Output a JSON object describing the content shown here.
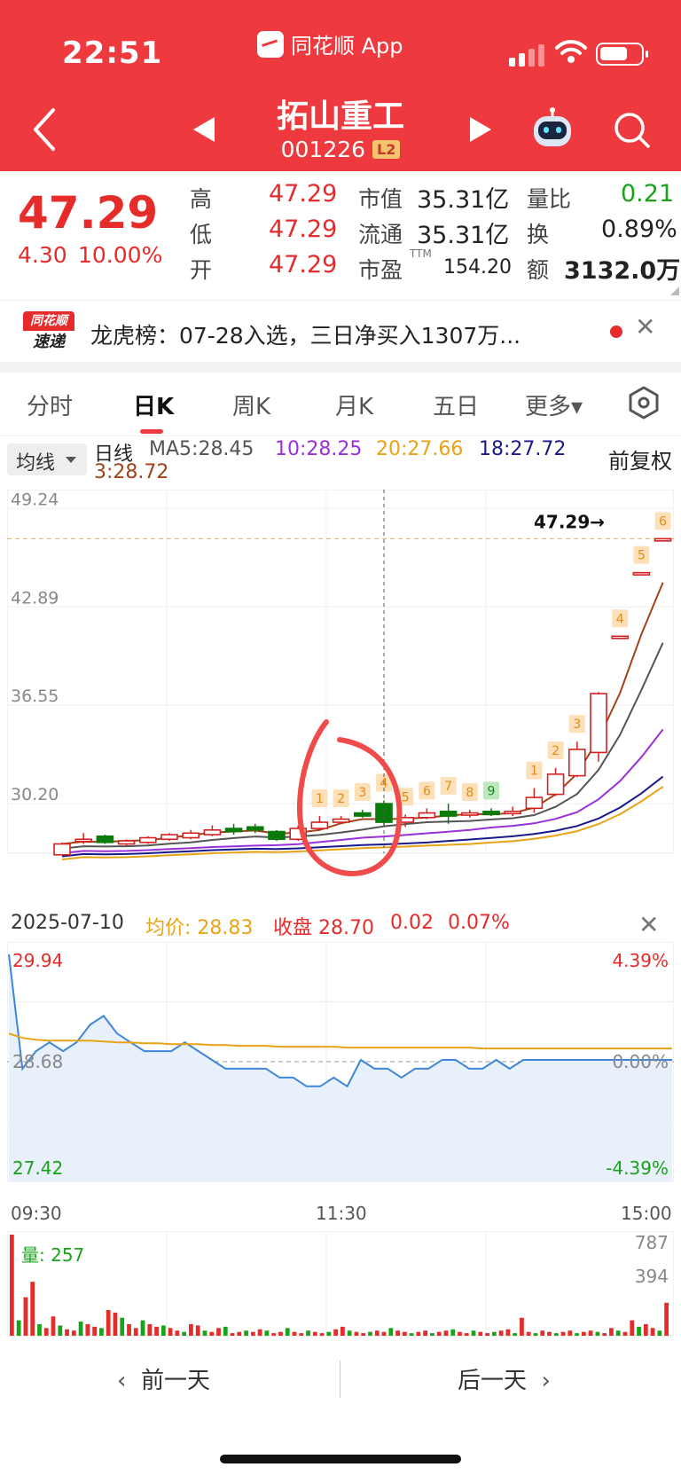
{
  "status_bar": {
    "time": "22:51",
    "app_label": "同花顺 App"
  },
  "header": {
    "stock_name": "拓山重工",
    "stock_code": "001226",
    "level_badge": "L2"
  },
  "quote": {
    "price": "47.29",
    "change": "4.30",
    "change_pct": "10.00%",
    "high_label": "高",
    "high": "47.29",
    "low_label": "低",
    "low": "47.29",
    "open_label": "开",
    "open": "47.29",
    "mcap_label": "市值",
    "mcap": "35.31亿",
    "float_label": "流通",
    "float": "35.31亿",
    "pe_label": "市盈",
    "pe_sup": "TTM",
    "pe": "154.20",
    "vr_label": "量比",
    "vr": "0.21",
    "turnover_label": "换",
    "turnover": "0.89%",
    "amount_label": "额",
    "amount": "3132.0万"
  },
  "news": {
    "logo_top": "同花顺",
    "logo_bottom": "速递",
    "text": "龙虎榜：07-28入选，三日净买入1307万..."
  },
  "tabs": [
    {
      "label": "分时"
    },
    {
      "label": "日K"
    },
    {
      "label": "周K"
    },
    {
      "label": "月K"
    },
    {
      "label": "五日"
    },
    {
      "label": "更多▾"
    }
  ],
  "ma": {
    "selector": "均线",
    "items": [
      "日线",
      "MA5:28.45",
      "10:28.25",
      "20:27.66",
      "18:27.72",
      "3:28.72"
    ],
    "adjust": "前复权",
    "colors": [
      "#222222",
      "#555555",
      "#9b30d9",
      "#e8a317",
      "#1a1a8c",
      "#a0421a"
    ]
  },
  "kline": {
    "y_labels": [
      "49.24",
      "42.89",
      "36.55",
      "30.20"
    ],
    "y_values": [
      49.24,
      42.89,
      36.55,
      30.2
    ],
    "last_price_label": "47.29",
    "last_price": 47.29,
    "candles": [
      {
        "o": 26.9,
        "c": 27.6,
        "h": 27.7,
        "l": 26.9
      },
      {
        "o": 27.9,
        "c": 27.9,
        "h": 28.3,
        "l": 27.6
      },
      {
        "o": 28.1,
        "c": 27.7,
        "h": 28.2,
        "l": 27.6
      },
      {
        "o": 27.6,
        "c": 27.8,
        "h": 27.9,
        "l": 27.5
      },
      {
        "o": 27.7,
        "c": 28.0,
        "h": 28.1,
        "l": 27.6
      },
      {
        "o": 27.9,
        "c": 28.2,
        "h": 28.3,
        "l": 27.8
      },
      {
        "o": 28.0,
        "c": 28.3,
        "h": 28.5,
        "l": 27.9
      },
      {
        "o": 28.2,
        "c": 28.5,
        "h": 28.8,
        "l": 28.1
      },
      {
        "o": 28.6,
        "c": 28.4,
        "h": 28.9,
        "l": 28.2
      },
      {
        "o": 28.7,
        "c": 28.5,
        "h": 28.9,
        "l": 28.3
      },
      {
        "o": 28.4,
        "c": 27.9,
        "h": 28.5,
        "l": 27.8
      },
      {
        "o": 27.9,
        "c": 28.6,
        "h": 28.8,
        "l": 27.8
      },
      {
        "o": 28.6,
        "c": 29.0,
        "h": 29.4,
        "l": 28.5
      },
      {
        "o": 29.0,
        "c": 29.2,
        "h": 29.4,
        "l": 28.9
      },
      {
        "o": 29.6,
        "c": 29.4,
        "h": 29.8,
        "l": 29.3
      },
      {
        "o": 30.2,
        "c": 29.0,
        "h": 30.4,
        "l": 28.8
      },
      {
        "o": 29.0,
        "c": 29.3,
        "h": 29.5,
        "l": 28.7
      },
      {
        "o": 29.3,
        "c": 29.6,
        "h": 29.9,
        "l": 29.2
      },
      {
        "o": 29.7,
        "c": 29.4,
        "h": 30.2,
        "l": 28.9
      },
      {
        "o": 29.5,
        "c": 29.6,
        "h": 29.8,
        "l": 29.3
      },
      {
        "o": 29.7,
        "c": 29.5,
        "h": 29.9,
        "l": 29.4
      },
      {
        "o": 29.6,
        "c": 29.7,
        "h": 30.0,
        "l": 29.4
      },
      {
        "o": 29.9,
        "c": 30.6,
        "h": 31.2,
        "l": 29.6
      },
      {
        "o": 30.8,
        "c": 32.1,
        "h": 32.5,
        "l": 30.7
      },
      {
        "o": 32.0,
        "c": 33.7,
        "h": 34.2,
        "l": 31.9
      },
      {
        "o": 33.5,
        "c": 37.3,
        "h": 37.4,
        "l": 32.9
      },
      {
        "o": 41.0,
        "c": 41.0,
        "h": 41.0,
        "l": 41.0
      },
      {
        "o": 45.1,
        "c": 45.1,
        "h": 45.1,
        "l": 45.1
      },
      {
        "o": 47.29,
        "c": 47.29,
        "h": 47.29,
        "l": 47.29
      }
    ],
    "markers": [
      {
        "candle": 12,
        "label": "1"
      },
      {
        "candle": 13,
        "label": "2"
      },
      {
        "candle": 14,
        "label": "3"
      },
      {
        "candle": 15,
        "label": "4"
      },
      {
        "candle": 16,
        "label": "5"
      },
      {
        "candle": 17,
        "label": "6"
      },
      {
        "candle": 18,
        "label": "7"
      },
      {
        "candle": 19,
        "label": "8"
      },
      {
        "candle": 20,
        "label": "9"
      },
      {
        "candle": 22,
        "label": "1"
      },
      {
        "candle": 23,
        "label": "2"
      },
      {
        "candle": 24,
        "label": "3"
      },
      {
        "candle": 26,
        "label": "4"
      },
      {
        "candle": 27,
        "label": "5"
      },
      {
        "candle": 28,
        "label": "6"
      }
    ]
  },
  "intraday": {
    "date": "2025-07-10",
    "avg_label": "均价: 28.83",
    "close_label": "收盘 28.70",
    "chg": "0.02",
    "chg_pct": "0.07%",
    "top_price": "29.94",
    "mid_price": "28.68",
    "bottom_price": "27.42",
    "top_pct": "4.39%",
    "mid_pct": "0.00%",
    "bottom_pct": "-4.39%",
    "price_path": [
      29.9,
      28.6,
      28.8,
      28.9,
      28.8,
      28.9,
      29.1,
      29.2,
      29.0,
      28.9,
      28.8,
      28.8,
      28.8,
      28.9,
      28.8,
      28.7,
      28.6,
      28.6,
      28.6,
      28.6,
      28.5,
      28.5,
      28.4,
      28.4,
      28.5,
      28.4,
      28.7,
      28.6,
      28.6,
      28.5,
      28.6,
      28.6,
      28.7,
      28.7,
      28.6,
      28.6,
      28.7,
      28.6,
      28.7,
      28.7,
      28.7,
      28.7,
      28.7,
      28.7,
      28.7,
      28.7,
      28.7,
      28.7,
      28.7,
      28.7
    ],
    "avg_path": [
      29.0,
      28.95,
      28.93,
      28.92,
      28.92,
      28.92,
      28.92,
      28.91,
      28.9,
      28.9,
      28.89,
      28.89,
      28.88,
      28.88,
      28.88,
      28.87,
      28.87,
      28.86,
      28.86,
      28.86,
      28.85,
      28.85,
      28.85,
      28.85,
      28.85,
      28.84,
      28.84,
      28.84,
      28.84,
      28.84,
      28.84,
      28.84,
      28.84,
      28.84,
      28.84,
      28.83,
      28.83,
      28.83,
      28.83,
      28.83,
      28.83,
      28.83,
      28.83,
      28.83,
      28.83,
      28.83,
      28.83,
      28.83,
      28.83,
      28.83
    ],
    "times": [
      "09:30",
      "11:30",
      "15:00"
    ]
  },
  "volume": {
    "label": "量: 257",
    "max_label": "787",
    "mid_label": "394",
    "max": 787,
    "bars": [
      787,
      120,
      300,
      420,
      90,
      60,
      150,
      80,
      50,
      40,
      110,
      90,
      70,
      60,
      200,
      180,
      140,
      90,
      60,
      120,
      90,
      70,
      80,
      60,
      40,
      30,
      90,
      80,
      40,
      30,
      60,
      70,
      20,
      30,
      40,
      30,
      50,
      40,
      20,
      30,
      60,
      30,
      20,
      40,
      30,
      20,
      30,
      50,
      70,
      40,
      30,
      20,
      30,
      40,
      30,
      60,
      40,
      30,
      20,
      30,
      40,
      20,
      30,
      40,
      50,
      30,
      20,
      40,
      30,
      20,
      30,
      40,
      50,
      20,
      140,
      30,
      20,
      40,
      30,
      20,
      30,
      40,
      20,
      30,
      40,
      30,
      20,
      60,
      40,
      30,
      120,
      70,
      90,
      60,
      40,
      257
    ]
  },
  "footer": {
    "prev_day": "前一天",
    "next_day": "后一天"
  }
}
